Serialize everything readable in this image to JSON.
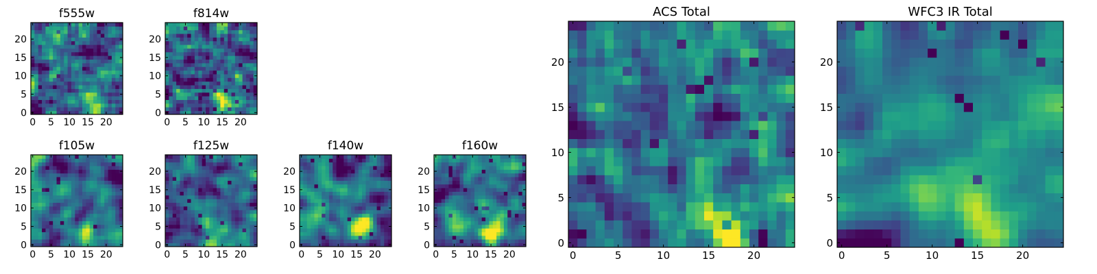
{
  "chart_data": [
    {
      "type": "heatmap",
      "title": "f555w",
      "colormap": "viridis",
      "grid_size": 25,
      "xticks": [
        "0",
        "5",
        "10",
        "15",
        "20"
      ],
      "yticks": [
        "0",
        "5",
        "10",
        "15",
        "20"
      ],
      "xlim": [
        0,
        24
      ],
      "ylim": [
        0,
        24
      ],
      "field": {
        "noise": 0.55,
        "smooth": 0.25,
        "bright_spot": [
          16,
          3
        ],
        "seed": 11
      }
    },
    {
      "type": "heatmap",
      "title": "f814w",
      "colormap": "viridis",
      "grid_size": 25,
      "xticks": [
        "0",
        "5",
        "10",
        "15",
        "20"
      ],
      "yticks": [
        "0",
        "5",
        "10",
        "15",
        "20"
      ],
      "xlim": [
        0,
        24
      ],
      "ylim": [
        0,
        24
      ],
      "field": {
        "noise": 0.5,
        "smooth": 0.3,
        "bright_spot": [
          16,
          2
        ],
        "seed": 23
      }
    },
    {
      "type": "heatmap",
      "title": "f105w",
      "colormap": "viridis",
      "grid_size": 25,
      "xticks": [
        "0",
        "5",
        "10",
        "15",
        "20"
      ],
      "yticks": [
        "0",
        "5",
        "10",
        "15",
        "20"
      ],
      "xlim": [
        0,
        24
      ],
      "ylim": [
        0,
        24
      ],
      "field": {
        "noise": 0.4,
        "smooth": 0.55,
        "bright_spot": [
          15,
          2
        ],
        "seed": 37
      }
    },
    {
      "type": "heatmap",
      "title": "f125w",
      "colormap": "viridis",
      "grid_size": 25,
      "xticks": [
        "0",
        "5",
        "10",
        "15",
        "20"
      ],
      "yticks": [
        "0",
        "5",
        "10",
        "15",
        "20"
      ],
      "xlim": [
        0,
        24
      ],
      "ylim": [
        0,
        24
      ],
      "field": {
        "noise": 0.4,
        "smooth": 0.55,
        "bright_spot": [
          13,
          6
        ],
        "seed": 41
      }
    },
    {
      "type": "heatmap",
      "title": "f140w",
      "colormap": "viridis",
      "grid_size": 25,
      "xticks": [
        "0",
        "5",
        "10",
        "15",
        "20"
      ],
      "yticks": [
        "0",
        "5",
        "10",
        "15",
        "20"
      ],
      "xlim": [
        0,
        24
      ],
      "ylim": [
        0,
        24
      ],
      "field": {
        "noise": 0.42,
        "smooth": 0.5,
        "bright_spot": [
          16,
          4
        ],
        "seed": 53
      }
    },
    {
      "type": "heatmap",
      "title": "f160w",
      "colormap": "viridis",
      "grid_size": 25,
      "xticks": [
        "0",
        "5",
        "10",
        "15",
        "20"
      ],
      "yticks": [
        "0",
        "5",
        "10",
        "15",
        "20"
      ],
      "xlim": [
        0,
        24
      ],
      "ylim": [
        0,
        24
      ],
      "field": {
        "noise": 0.42,
        "smooth": 0.5,
        "bright_spot": [
          15,
          3
        ],
        "seed": 67
      }
    },
    {
      "type": "heatmap",
      "title": "ACS Total",
      "colormap": "viridis",
      "grid_size": 25,
      "xticks": [
        "0",
        "5",
        "10",
        "15",
        "20"
      ],
      "yticks": [
        "0",
        "5",
        "10",
        "15",
        "20"
      ],
      "xlim": [
        0,
        24
      ],
      "ylim": [
        0,
        24
      ],
      "field": {
        "noise": 0.45,
        "smooth": 0.3,
        "bright_spot": [
          16,
          2
        ],
        "seed": 79
      }
    },
    {
      "type": "heatmap",
      "title": "WFC3 IR Total",
      "colormap": "viridis",
      "grid_size": 25,
      "xticks": [
        "0",
        "5",
        "10",
        "15",
        "20"
      ],
      "yticks": [
        "0",
        "5",
        "10",
        "15",
        "20"
      ],
      "xlim": [
        0,
        24
      ],
      "ylim": [
        0,
        24
      ],
      "field": {
        "noise": 0.35,
        "smooth": 0.6,
        "bright_spot": [
          16,
          3
        ],
        "seed": 97
      }
    }
  ],
  "colors": {
    "viridis": [
      "#440154",
      "#482878",
      "#3e4989",
      "#31688e",
      "#26828e",
      "#1f9e89",
      "#35b779",
      "#6ece58",
      "#b5de2b",
      "#fde725"
    ]
  }
}
